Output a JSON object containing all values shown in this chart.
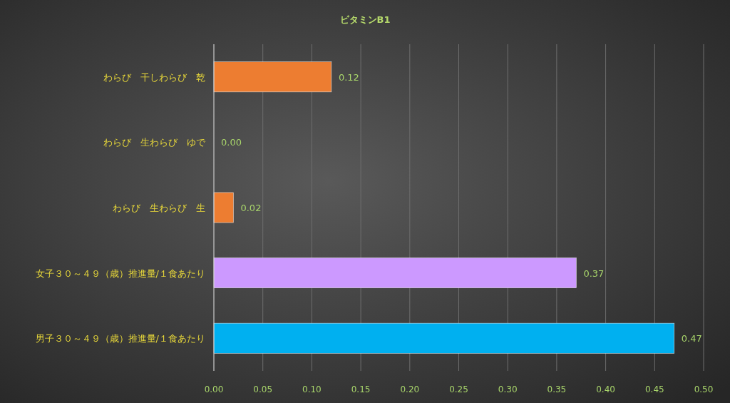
{
  "chart_data": {
    "type": "bar",
    "orientation": "horizontal",
    "title": "ビタミンB1",
    "categories": [
      "わらび　干しわらび　乾",
      "わらび　生わらび　ゆで",
      "わらび　生わらび　生",
      "女子３０～４９（歳）推進量/１食あたり",
      "男子３０～４９（歳）推進量/１食あたり"
    ],
    "values": [
      0.12,
      0.0,
      0.02,
      0.37,
      0.47
    ],
    "colors": [
      "#ed7d31",
      "#ed7d31",
      "#ed7d31",
      "#cc99ff",
      "#00b0f0"
    ],
    "value_labels": [
      "0.12",
      "0.00",
      "0.02",
      "0.37",
      "0.47"
    ],
    "xlim": [
      0,
      0.5
    ],
    "xticks": [
      {
        "value": 0,
        "label": "0.00"
      },
      {
        "value": 0.05,
        "label": "0.05"
      },
      {
        "value": 0.1,
        "label": "0.10"
      },
      {
        "value": 0.15,
        "label": "0.15"
      },
      {
        "value": 0.2,
        "label": "0.20"
      },
      {
        "value": 0.25,
        "label": "0.25"
      },
      {
        "value": 0.3,
        "label": "0.30"
      },
      {
        "value": 0.35,
        "label": "0.35"
      },
      {
        "value": 0.4,
        "label": "0.40"
      },
      {
        "value": 0.45,
        "label": "0.45"
      },
      {
        "value": 0.5,
        "label": "0.50"
      }
    ],
    "grid": "x"
  }
}
